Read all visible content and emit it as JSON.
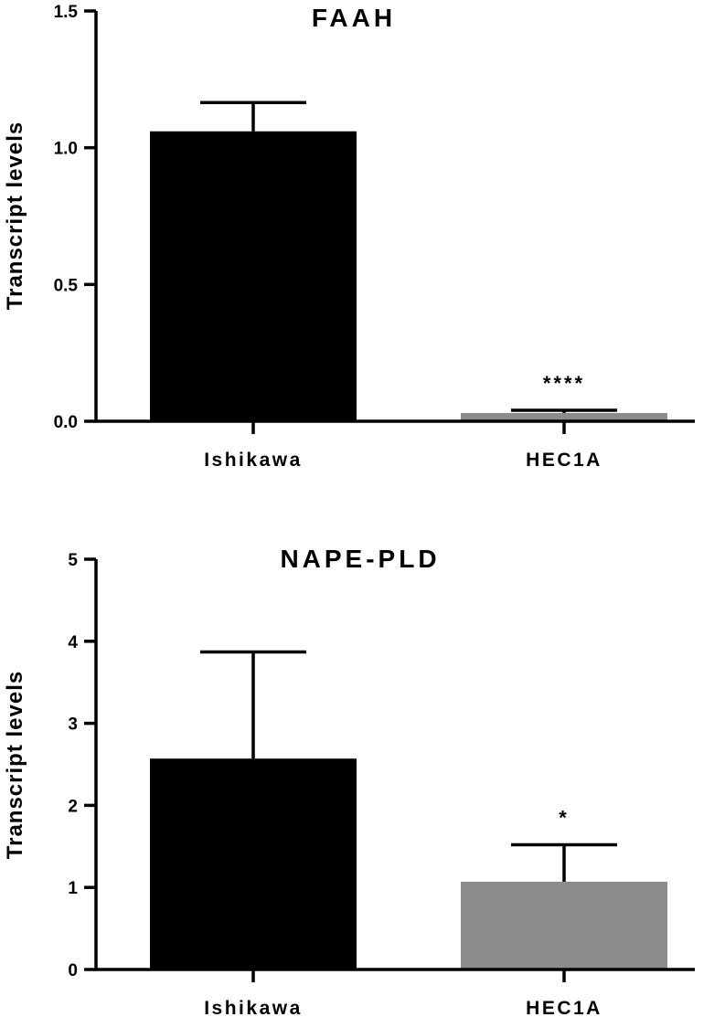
{
  "chart_data": [
    {
      "type": "bar",
      "title": "FAAH",
      "ylabel": "Transcript levels",
      "xlabel": "",
      "categories": [
        "Ishikawa",
        "HEC1A"
      ],
      "values": [
        1.06,
        0.03
      ],
      "errors": [
        0.105,
        0.01
      ],
      "colors": [
        "#000000",
        "#8c8c8c"
      ],
      "significance": [
        "",
        "****"
      ],
      "ylim": [
        0,
        1.5
      ],
      "yticks": [
        0.0,
        0.5,
        1.0,
        1.5
      ],
      "ytick_labels": [
        "0.0",
        "0.5",
        "1.0",
        "1.5"
      ]
    },
    {
      "type": "bar",
      "title": "NAPE-PLD",
      "ylabel": "Transcript levels",
      "xlabel": "",
      "categories": [
        "Ishikawa",
        "HEC1A"
      ],
      "values": [
        2.57,
        1.07
      ],
      "errors": [
        1.3,
        0.45
      ],
      "colors": [
        "#000000",
        "#8c8c8c"
      ],
      "significance": [
        "",
        "*"
      ],
      "ylim": [
        0,
        5
      ],
      "yticks": [
        0,
        1,
        2,
        3,
        4,
        5
      ],
      "ytick_labels": [
        "0",
        "1",
        "2",
        "3",
        "4",
        "5"
      ]
    }
  ]
}
